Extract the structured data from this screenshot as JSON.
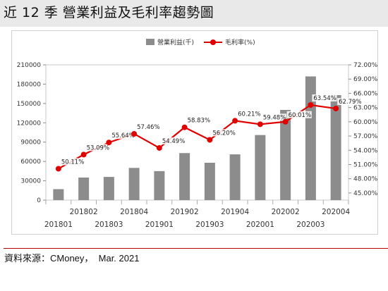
{
  "page": {
    "title": "近 12 季  營業利益及毛利率趨勢圖",
    "source": "資料來源：CMoney，  Mar. 2021"
  },
  "chart_data": {
    "type": "bar",
    "categories": [
      "201801",
      "201802",
      "201803",
      "201804",
      "201901",
      "201902",
      "201903",
      "201904",
      "202001",
      "202002",
      "202003",
      "202004"
    ],
    "series": [
      {
        "name": "營業利益(千)",
        "type": "bar",
        "axis": "left",
        "color": "#8c8c8c",
        "values": [
          17000,
          35000,
          36000,
          50000,
          45000,
          73000,
          58000,
          71000,
          101000,
          140000,
          192000,
          163000
        ]
      },
      {
        "name": "毛利率(%)",
        "type": "line",
        "axis": "right",
        "color": "#e00000",
        "values": [
          50.11,
          53.09,
          55.64,
          57.46,
          54.49,
          58.83,
          56.2,
          60.21,
          59.48,
          60.01,
          63.54,
          62.79
        ],
        "labels": [
          "50.11%",
          "53.09%",
          "55.64%",
          "57.46%",
          "54.49%",
          "58.83%",
          "56.20%",
          "60.21%",
          "59.48%",
          "60.01%",
          "63.54%",
          "62.79%"
        ]
      }
    ],
    "y_left": {
      "range": [
        0,
        210000
      ],
      "ticks": [
        0,
        30000,
        60000,
        90000,
        120000,
        150000,
        180000,
        210000
      ],
      "tick_labels": [
        "0",
        "30000",
        "60000",
        "90000",
        "120000",
        "150000",
        "180000",
        "210000"
      ]
    },
    "y_right": {
      "range": [
        43.5,
        72
      ],
      "ticks": [
        45,
        48,
        51,
        54,
        57,
        60,
        63,
        66,
        69,
        72
      ],
      "tick_labels": [
        "45.00%",
        "48.00%",
        "51.00%",
        "54.00%",
        "57.00%",
        "60.00%",
        "63.00%",
        "66.00%",
        "69.00%",
        "72.00%"
      ]
    },
    "title": "",
    "xlabel": "",
    "ylabel": "",
    "grid": false,
    "legend": "top-center"
  }
}
